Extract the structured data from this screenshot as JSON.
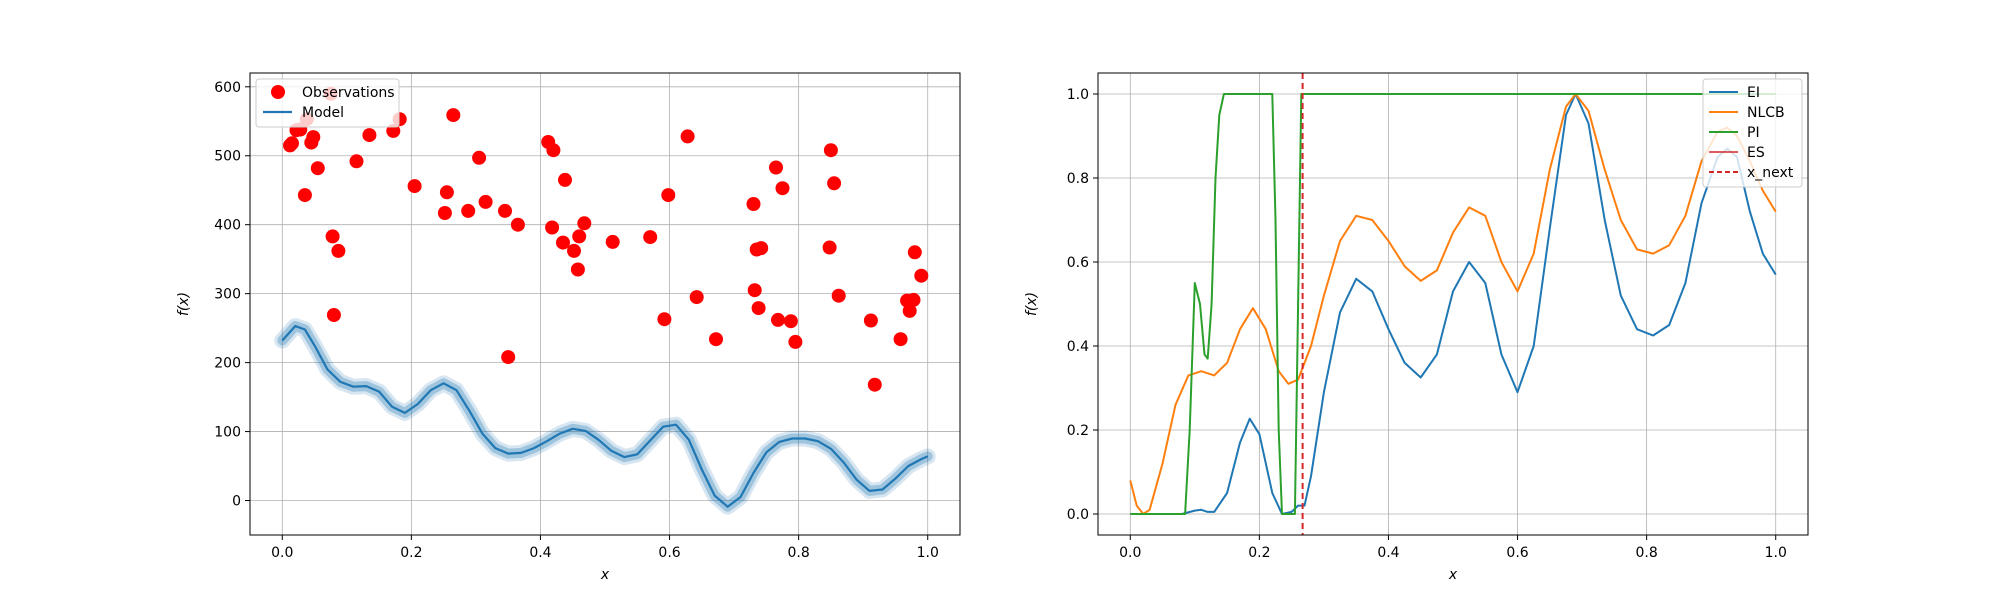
{
  "chart_data": [
    {
      "type": "scatter",
      "xlabel": "x",
      "ylabel": "f(x)",
      "xlim": [
        -0.05,
        1.05
      ],
      "ylim": [
        -50,
        620
      ],
      "xticks": [
        "0.0",
        "0.2",
        "0.4",
        "0.6",
        "0.8",
        "1.0"
      ],
      "yticks": [
        "0",
        "100",
        "200",
        "300",
        "400",
        "500",
        "600"
      ],
      "grid": true,
      "legend_position": "top-left",
      "series": [
        {
          "name": "Observations",
          "kind": "scatter",
          "color": "#ff0000",
          "points": [
            [
              0.012,
              515
            ],
            [
              0.015,
              518
            ],
            [
              0.022,
              537
            ],
            [
              0.028,
              538
            ],
            [
              0.035,
              443
            ],
            [
              0.038,
              553
            ],
            [
              0.045,
              519
            ],
            [
              0.048,
              527
            ],
            [
              0.055,
              482
            ],
            [
              0.075,
              590
            ],
            [
              0.078,
              383
            ],
            [
              0.08,
              269
            ],
            [
              0.087,
              362
            ],
            [
              0.115,
              492
            ],
            [
              0.135,
              530
            ],
            [
              0.172,
              536
            ],
            [
              0.182,
              553
            ],
            [
              0.205,
              456
            ],
            [
              0.252,
              417
            ],
            [
              0.255,
              447
            ],
            [
              0.265,
              559
            ],
            [
              0.288,
              420
            ],
            [
              0.305,
              497
            ],
            [
              0.315,
              433
            ],
            [
              0.345,
              420
            ],
            [
              0.35,
              208
            ],
            [
              0.365,
              400
            ],
            [
              0.412,
              520
            ],
            [
              0.418,
              396
            ],
            [
              0.42,
              508
            ],
            [
              0.435,
              374
            ],
            [
              0.438,
              465
            ],
            [
              0.452,
              362
            ],
            [
              0.458,
              335
            ],
            [
              0.46,
              383
            ],
            [
              0.468,
              402
            ],
            [
              0.512,
              375
            ],
            [
              0.57,
              382
            ],
            [
              0.592,
              263
            ],
            [
              0.598,
              443
            ],
            [
              0.628,
              528
            ],
            [
              0.642,
              295
            ],
            [
              0.672,
              234
            ],
            [
              0.73,
              430
            ],
            [
              0.732,
              305
            ],
            [
              0.735,
              364
            ],
            [
              0.738,
              279
            ],
            [
              0.742,
              366
            ],
            [
              0.765,
              483
            ],
            [
              0.768,
              262
            ],
            [
              0.775,
              453
            ],
            [
              0.788,
              260
            ],
            [
              0.795,
              230
            ],
            [
              0.848,
              367
            ],
            [
              0.85,
              508
            ],
            [
              0.855,
              460
            ],
            [
              0.862,
              297
            ],
            [
              0.912,
              261
            ],
            [
              0.918,
              168
            ],
            [
              0.958,
              234
            ],
            [
              0.968,
              290
            ],
            [
              0.972,
              275
            ],
            [
              0.978,
              291
            ],
            [
              0.98,
              360
            ],
            [
              0.99,
              326
            ]
          ]
        },
        {
          "name": "Model",
          "kind": "line",
          "color": "#1f77b4",
          "band_color": "#1f77b4",
          "points": [
            [
              0.0,
              232
            ],
            [
              0.02,
              253
            ],
            [
              0.035,
              248
            ],
            [
              0.05,
              225
            ],
            [
              0.07,
              190
            ],
            [
              0.09,
              172
            ],
            [
              0.11,
              165
            ],
            [
              0.13,
              166
            ],
            [
              0.15,
              158
            ],
            [
              0.17,
              136
            ],
            [
              0.19,
              127
            ],
            [
              0.21,
              140
            ],
            [
              0.23,
              160
            ],
            [
              0.25,
              170
            ],
            [
              0.27,
              160
            ],
            [
              0.29,
              130
            ],
            [
              0.31,
              97
            ],
            [
              0.33,
              76
            ],
            [
              0.35,
              68
            ],
            [
              0.37,
              69
            ],
            [
              0.39,
              76
            ],
            [
              0.41,
              86
            ],
            [
              0.43,
              97
            ],
            [
              0.45,
              104
            ],
            [
              0.47,
              101
            ],
            [
              0.49,
              88
            ],
            [
              0.51,
              72
            ],
            [
              0.53,
              63
            ],
            [
              0.55,
              67
            ],
            [
              0.57,
              87
            ],
            [
              0.59,
              107
            ],
            [
              0.61,
              110
            ],
            [
              0.63,
              88
            ],
            [
              0.65,
              45
            ],
            [
              0.67,
              7
            ],
            [
              0.69,
              -9
            ],
            [
              0.71,
              5
            ],
            [
              0.73,
              40
            ],
            [
              0.75,
              70
            ],
            [
              0.77,
              85
            ],
            [
              0.79,
              90
            ],
            [
              0.81,
              90
            ],
            [
              0.83,
              86
            ],
            [
              0.85,
              75
            ],
            [
              0.87,
              55
            ],
            [
              0.89,
              30
            ],
            [
              0.91,
              14
            ],
            [
              0.93,
              16
            ],
            [
              0.95,
              32
            ],
            [
              0.97,
              50
            ],
            [
              0.99,
              60
            ],
            [
              1.0,
              64
            ]
          ]
        }
      ]
    },
    {
      "type": "line",
      "xlabel": "x",
      "ylabel": "f(x)",
      "xlim": [
        -0.05,
        1.05
      ],
      "ylim": [
        -0.05,
        1.05
      ],
      "xticks": [
        "0.0",
        "0.2",
        "0.4",
        "0.6",
        "0.8",
        "1.0"
      ],
      "yticks": [
        "0.0",
        "0.2",
        "0.4",
        "0.6",
        "0.8",
        "1.0"
      ],
      "grid": true,
      "legend_position": "top-right",
      "x_next": 0.267,
      "series": [
        {
          "name": "EI",
          "color": "#1f77b4",
          "points": [
            [
              0.0,
              0.0
            ],
            [
              0.08,
              0.0
            ],
            [
              0.1,
              0.008
            ],
            [
              0.11,
              0.01
            ],
            [
              0.12,
              0.005
            ],
            [
              0.13,
              0.005
            ],
            [
              0.15,
              0.05
            ],
            [
              0.17,
              0.17
            ],
            [
              0.185,
              0.227
            ],
            [
              0.2,
              0.19
            ],
            [
              0.22,
              0.05
            ],
            [
              0.235,
              0.0
            ],
            [
              0.25,
              0.005
            ],
            [
              0.26,
              0.02
            ],
            [
              0.27,
              0.02
            ],
            [
              0.28,
              0.09
            ],
            [
              0.3,
              0.29
            ],
            [
              0.325,
              0.48
            ],
            [
              0.35,
              0.56
            ],
            [
              0.375,
              0.53
            ],
            [
              0.4,
              0.44
            ],
            [
              0.425,
              0.36
            ],
            [
              0.45,
              0.325
            ],
            [
              0.475,
              0.38
            ],
            [
              0.5,
              0.53
            ],
            [
              0.525,
              0.6
            ],
            [
              0.55,
              0.55
            ],
            [
              0.575,
              0.38
            ],
            [
              0.6,
              0.29
            ],
            [
              0.625,
              0.4
            ],
            [
              0.65,
              0.68
            ],
            [
              0.675,
              0.95
            ],
            [
              0.69,
              1.0
            ],
            [
              0.71,
              0.93
            ],
            [
              0.735,
              0.7
            ],
            [
              0.76,
              0.52
            ],
            [
              0.785,
              0.44
            ],
            [
              0.81,
              0.425
            ],
            [
              0.835,
              0.45
            ],
            [
              0.86,
              0.55
            ],
            [
              0.885,
              0.74
            ],
            [
              0.91,
              0.85
            ],
            [
              0.925,
              0.87
            ],
            [
              0.94,
              0.85
            ],
            [
              0.96,
              0.72
            ],
            [
              0.98,
              0.62
            ],
            [
              1.0,
              0.57
            ]
          ]
        },
        {
          "name": "NLCB",
          "color": "#ff7f0e",
          "points": [
            [
              0.0,
              0.08
            ],
            [
              0.01,
              0.02
            ],
            [
              0.02,
              0.0
            ],
            [
              0.03,
              0.01
            ],
            [
              0.05,
              0.12
            ],
            [
              0.07,
              0.26
            ],
            [
              0.09,
              0.33
            ],
            [
              0.11,
              0.34
            ],
            [
              0.13,
              0.33
            ],
            [
              0.15,
              0.36
            ],
            [
              0.17,
              0.44
            ],
            [
              0.19,
              0.49
            ],
            [
              0.21,
              0.44
            ],
            [
              0.23,
              0.34
            ],
            [
              0.245,
              0.31
            ],
            [
              0.26,
              0.32
            ],
            [
              0.28,
              0.4
            ],
            [
              0.3,
              0.52
            ],
            [
              0.325,
              0.65
            ],
            [
              0.35,
              0.71
            ],
            [
              0.375,
              0.7
            ],
            [
              0.4,
              0.65
            ],
            [
              0.425,
              0.59
            ],
            [
              0.45,
              0.555
            ],
            [
              0.475,
              0.58
            ],
            [
              0.5,
              0.67
            ],
            [
              0.525,
              0.73
            ],
            [
              0.55,
              0.71
            ],
            [
              0.575,
              0.6
            ],
            [
              0.6,
              0.53
            ],
            [
              0.625,
              0.62
            ],
            [
              0.65,
              0.82
            ],
            [
              0.675,
              0.97
            ],
            [
              0.69,
              1.0
            ],
            [
              0.71,
              0.96
            ],
            [
              0.735,
              0.82
            ],
            [
              0.76,
              0.7
            ],
            [
              0.785,
              0.63
            ],
            [
              0.81,
              0.62
            ],
            [
              0.835,
              0.64
            ],
            [
              0.86,
              0.71
            ],
            [
              0.885,
              0.84
            ],
            [
              0.91,
              0.91
            ],
            [
              0.925,
              0.92
            ],
            [
              0.94,
              0.9
            ],
            [
              0.96,
              0.84
            ],
            [
              0.98,
              0.77
            ],
            [
              1.0,
              0.72
            ]
          ]
        },
        {
          "name": "PI",
          "color": "#2ca02c",
          "points": [
            [
              0.0,
              0.0
            ],
            [
              0.085,
              0.0
            ],
            [
              0.092,
              0.2
            ],
            [
              0.1,
              0.55
            ],
            [
              0.108,
              0.5
            ],
            [
              0.115,
              0.38
            ],
            [
              0.12,
              0.37
            ],
            [
              0.126,
              0.5
            ],
            [
              0.132,
              0.8
            ],
            [
              0.138,
              0.95
            ],
            [
              0.145,
              1.0
            ],
            [
              0.22,
              1.0
            ],
            [
              0.225,
              0.7
            ],
            [
              0.23,
              0.2
            ],
            [
              0.235,
              0.0
            ],
            [
              0.255,
              0.0
            ],
            [
              0.26,
              0.5
            ],
            [
              0.265,
              1.0
            ],
            [
              1.0,
              1.0
            ]
          ]
        },
        {
          "name": "ES",
          "color": "#d62728",
          "points": []
        },
        {
          "name": "x_next",
          "color": "#d62728",
          "dashed": true,
          "points": []
        }
      ]
    }
  ]
}
